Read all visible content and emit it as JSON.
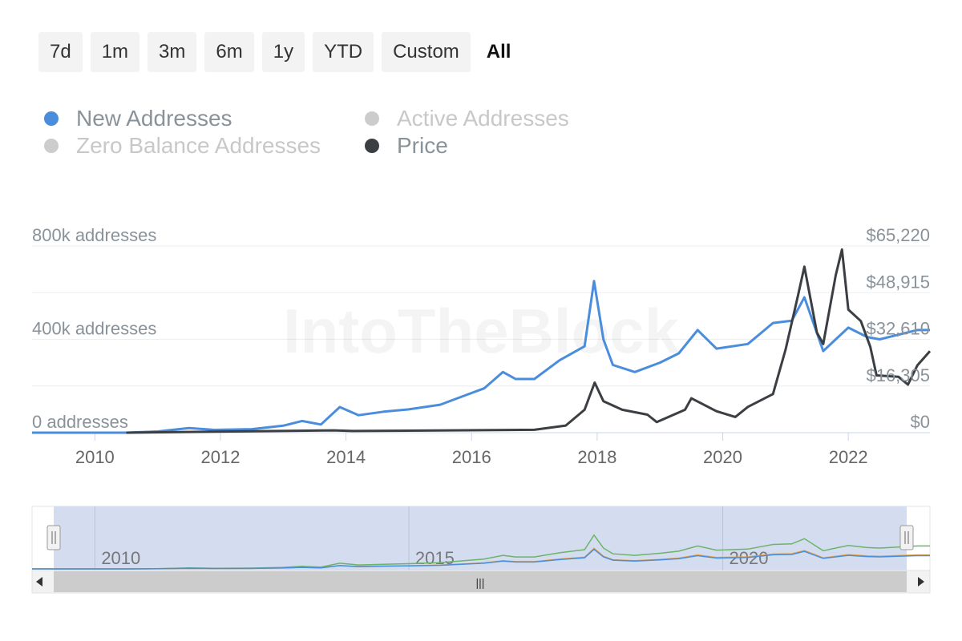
{
  "range_buttons": [
    "7d",
    "1m",
    "3m",
    "6m",
    "1y",
    "YTD",
    "Custom",
    "All"
  ],
  "range_active": "All",
  "legend": [
    {
      "label": "New Addresses",
      "color": "#4a8ddc",
      "enabled": true
    },
    {
      "label": "Active Addresses",
      "color": "#cccccc",
      "enabled": false
    },
    {
      "label": "Zero Balance Addresses",
      "color": "#cccccc",
      "enabled": false
    },
    {
      "label": "Price",
      "color": "#3b3e42",
      "enabled": true
    }
  ],
  "watermark": "IntoTheBlock",
  "chart_data": {
    "type": "line",
    "x_axis": {
      "ticks": [
        "2010",
        "2012",
        "2014",
        "2016",
        "2018",
        "2020",
        "2022"
      ],
      "range": [
        2009.0,
        2023.3
      ]
    },
    "y_left": {
      "ticks": [
        "0 addresses",
        "400k addresses",
        "800k addresses"
      ],
      "range": [
        0,
        800000
      ]
    },
    "y_right": {
      "ticks": [
        "$0",
        "$16,305",
        "$32,610",
        "$48,915",
        "$65,220"
      ],
      "range": [
        0,
        65220
      ]
    },
    "grid": true,
    "series": [
      {
        "name": "New Addresses",
        "axis": "left",
        "color": "#4a8ddc",
        "points": [
          [
            2009.0,
            0
          ],
          [
            2010.5,
            0
          ],
          [
            2011.0,
            5000
          ],
          [
            2011.5,
            20000
          ],
          [
            2011.9,
            12000
          ],
          [
            2012.5,
            15000
          ],
          [
            2013.0,
            30000
          ],
          [
            2013.3,
            50000
          ],
          [
            2013.6,
            35000
          ],
          [
            2013.9,
            110000
          ],
          [
            2014.2,
            75000
          ],
          [
            2014.6,
            90000
          ],
          [
            2015.0,
            100000
          ],
          [
            2015.5,
            120000
          ],
          [
            2015.9,
            160000
          ],
          [
            2016.2,
            190000
          ],
          [
            2016.5,
            260000
          ],
          [
            2016.7,
            230000
          ],
          [
            2017.0,
            230000
          ],
          [
            2017.4,
            310000
          ],
          [
            2017.8,
            370000
          ],
          [
            2017.95,
            650000
          ],
          [
            2018.1,
            400000
          ],
          [
            2018.25,
            290000
          ],
          [
            2018.6,
            260000
          ],
          [
            2019.0,
            300000
          ],
          [
            2019.3,
            340000
          ],
          [
            2019.6,
            440000
          ],
          [
            2019.9,
            360000
          ],
          [
            2020.4,
            380000
          ],
          [
            2020.8,
            470000
          ],
          [
            2021.1,
            480000
          ],
          [
            2021.3,
            580000
          ],
          [
            2021.6,
            350000
          ],
          [
            2021.8,
            400000
          ],
          [
            2022.0,
            450000
          ],
          [
            2022.3,
            410000
          ],
          [
            2022.5,
            400000
          ],
          [
            2022.8,
            420000
          ],
          [
            2023.1,
            440000
          ],
          [
            2023.3,
            440000
          ]
        ]
      },
      {
        "name": "Price",
        "axis": "right",
        "color": "#3b3e42",
        "points": [
          [
            2010.5,
            0
          ],
          [
            2013.8,
            800
          ],
          [
            2014.1,
            600
          ],
          [
            2017.0,
            1000
          ],
          [
            2017.5,
            2500
          ],
          [
            2017.8,
            8000
          ],
          [
            2017.96,
            17500
          ],
          [
            2018.1,
            11000
          ],
          [
            2018.4,
            8000
          ],
          [
            2018.8,
            6300
          ],
          [
            2018.95,
            3700
          ],
          [
            2019.4,
            8000
          ],
          [
            2019.5,
            12000
          ],
          [
            2019.9,
            7500
          ],
          [
            2020.2,
            5500
          ],
          [
            2020.4,
            9000
          ],
          [
            2020.8,
            13500
          ],
          [
            2021.0,
            29000
          ],
          [
            2021.2,
            48000
          ],
          [
            2021.3,
            58000
          ],
          [
            2021.5,
            35000
          ],
          [
            2021.6,
            31000
          ],
          [
            2021.8,
            55000
          ],
          [
            2021.9,
            64000
          ],
          [
            2022.0,
            43000
          ],
          [
            2022.2,
            39000
          ],
          [
            2022.35,
            30000
          ],
          [
            2022.45,
            20000
          ],
          [
            2022.8,
            19500
          ],
          [
            2022.95,
            16800
          ],
          [
            2023.1,
            23500
          ],
          [
            2023.3,
            28500
          ]
        ]
      }
    ]
  },
  "navigator": {
    "ticks": [
      "2010",
      "2015",
      "2020"
    ],
    "handle_grip": "|||",
    "series_colors": [
      "#4a8ddc",
      "#6db36a",
      "#e8a03c"
    ]
  }
}
